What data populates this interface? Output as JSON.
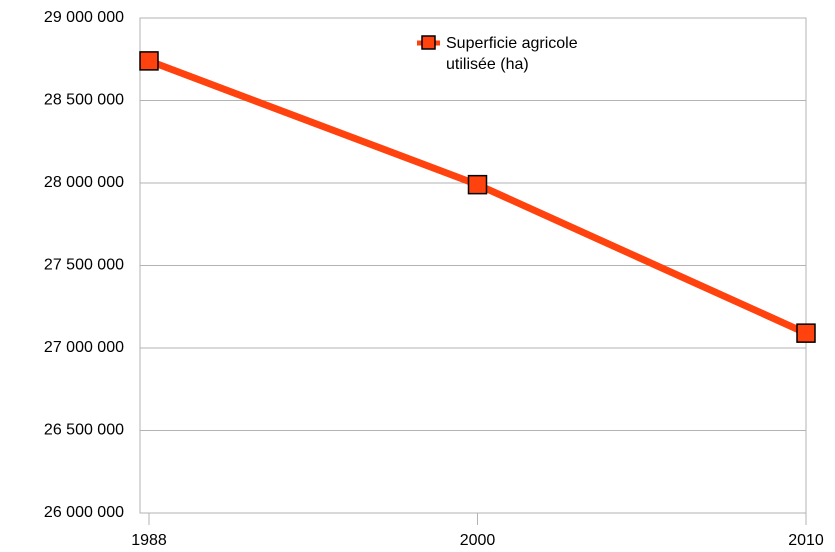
{
  "chart_data": {
    "type": "line",
    "categories": [
      "1988",
      "2000",
      "2010"
    ],
    "series": [
      {
        "name": "Superficie agricole utilisée (ha)",
        "color": "#ff420e",
        "values": [
          28740000,
          27990000,
          27090000
        ]
      }
    ],
    "ylim": [
      26000000,
      29000000
    ],
    "yticks": [
      {
        "value": 26000000,
        "label": "26 000 000"
      },
      {
        "value": 26500000,
        "label": "26 500 000"
      },
      {
        "value": 27000000,
        "label": "27 000 000"
      },
      {
        "value": 27500000,
        "label": "27 500 000"
      },
      {
        "value": 28000000,
        "label": "28 000 000"
      },
      {
        "value": 28500000,
        "label": "28 500 000"
      },
      {
        "value": 29000000,
        "label": "29 000 000"
      }
    ],
    "grid": true,
    "legend": "top"
  }
}
